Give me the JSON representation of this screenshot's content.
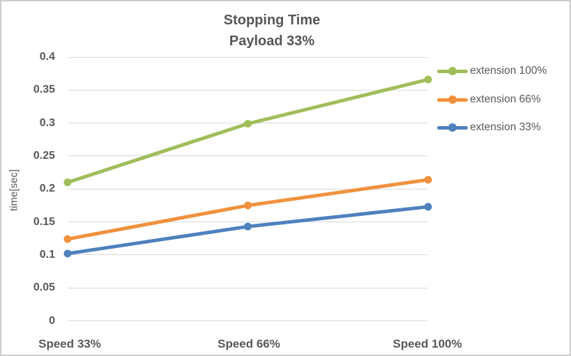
{
  "chart_data": {
    "type": "line",
    "title": "Stopping Time",
    "subtitle": "Payload 33%",
    "ylabel": "time[sec]",
    "xlabel": "",
    "categories": [
      "Speed 33%",
      "Speed 66%",
      "Speed 100%"
    ],
    "series": [
      {
        "name": "extension 100%",
        "color": "#9FBE5A",
        "values": [
          0.21,
          0.299,
          0.366
        ]
      },
      {
        "name": "extension 66%",
        "color": "#F0913D",
        "values": [
          0.124,
          0.175,
          0.214
        ]
      },
      {
        "name": "extension 33%",
        "color": "#4E81BD",
        "values": [
          0.102,
          0.143,
          0.173
        ]
      }
    ],
    "ylim": [
      0,
      0.4
    ],
    "ytick_step": 0.05,
    "ytick_labels": [
      "0.4",
      "0.35",
      "0.3",
      "0.25",
      "0.2",
      "0.15",
      "0.1",
      "0.05",
      "0"
    ],
    "grid": "horizontal",
    "legend_position": "right",
    "colors": {
      "text_gray": "#595959",
      "gridline": "#d9d9d9",
      "frame_border": "#cdcdcd"
    }
  }
}
